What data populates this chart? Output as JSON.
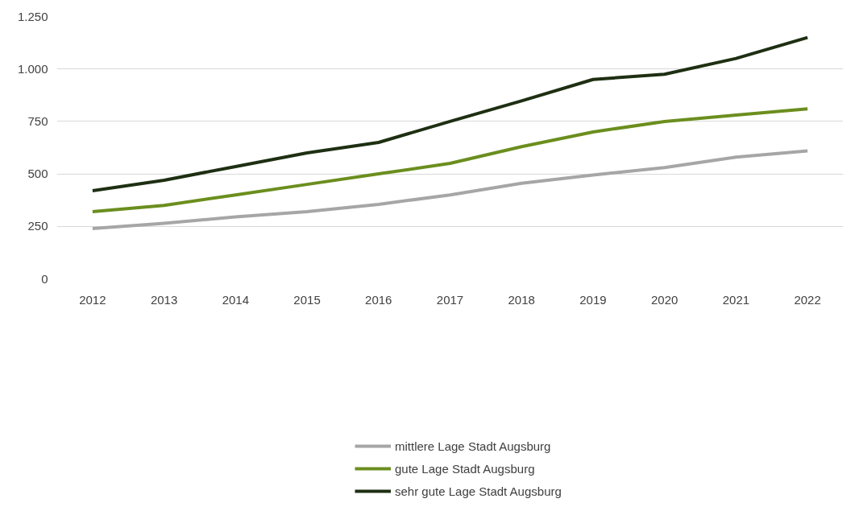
{
  "chart_data": {
    "type": "line",
    "categories": [
      "2012",
      "2013",
      "2014",
      "2015",
      "2016",
      "2017",
      "2018",
      "2019",
      "2020",
      "2021",
      "2022"
    ],
    "series": [
      {
        "name": "mittlere Lage Stadt Augsburg",
        "color": "#a6a6a6",
        "values": [
          240,
          265,
          295,
          320,
          355,
          400,
          455,
          495,
          530,
          580,
          610
        ]
      },
      {
        "name": "gute Lage Stadt Augsburg",
        "color": "#6b8e1e",
        "values": [
          320,
          350,
          400,
          450,
          500,
          550,
          630,
          700,
          750,
          780,
          810
        ]
      },
      {
        "name": "sehr gute Lage Stadt Augsburg",
        "color": "#1e2f12",
        "values": [
          420,
          470,
          535,
          600,
          650,
          750,
          848,
          950,
          975,
          1050,
          1150
        ]
      }
    ],
    "ylim": [
      0,
      1250
    ],
    "yticks": [
      0,
      250,
      500,
      750,
      {
        "value": 1000,
        "label": "1.000"
      },
      {
        "value": 1250,
        "label": "1.250"
      }
    ],
    "grid": "y",
    "legend": "bottom",
    "marker": "none",
    "line_style": "solid"
  }
}
